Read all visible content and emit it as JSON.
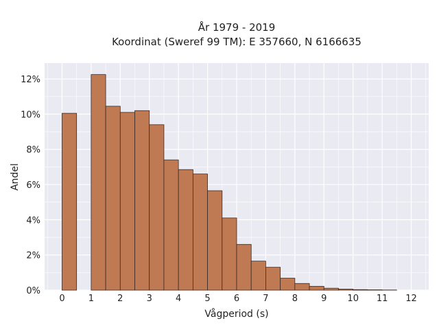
{
  "chart_data": {
    "type": "bar",
    "title": "År 1979 - 2019",
    "subtitle": "Koordinat (Sweref 99 TM): E 357660, N 6166635",
    "xlabel": "Vågperiod (s)",
    "ylabel": "Andel",
    "xlim": [
      -0.6,
      12.6
    ],
    "ylim": [
      0,
      12.9
    ],
    "x_ticks": [
      0,
      1,
      2,
      3,
      4,
      5,
      6,
      7,
      8,
      9,
      10,
      11,
      12
    ],
    "y_ticks": [
      0,
      2,
      4,
      6,
      8,
      10,
      12
    ],
    "y_tick_labels": [
      "0%",
      "2%",
      "4%",
      "6%",
      "8%",
      "10%",
      "12%"
    ],
    "bin_width": 0.5,
    "bins": [
      {
        "x": 0.0,
        "y": 10.05
      },
      {
        "x": 1.0,
        "y": 12.25
      },
      {
        "x": 1.5,
        "y": 10.45
      },
      {
        "x": 2.0,
        "y": 10.1
      },
      {
        "x": 2.5,
        "y": 10.2
      },
      {
        "x": 3.0,
        "y": 9.4
      },
      {
        "x": 3.5,
        "y": 7.4
      },
      {
        "x": 4.0,
        "y": 6.85
      },
      {
        "x": 4.5,
        "y": 6.6
      },
      {
        "x": 5.0,
        "y": 5.65
      },
      {
        "x": 5.5,
        "y": 4.1
      },
      {
        "x": 6.0,
        "y": 2.6
      },
      {
        "x": 6.5,
        "y": 1.65
      },
      {
        "x": 7.0,
        "y": 1.3
      },
      {
        "x": 7.5,
        "y": 0.68
      },
      {
        "x": 8.0,
        "y": 0.38
      },
      {
        "x": 8.5,
        "y": 0.22
      },
      {
        "x": 9.0,
        "y": 0.11
      },
      {
        "x": 9.5,
        "y": 0.06
      },
      {
        "x": 10.0,
        "y": 0.03
      },
      {
        "x": 10.5,
        "y": 0.02
      },
      {
        "x": 11.0,
        "y": 0.01
      }
    ],
    "grid": true,
    "colors": {
      "bar_fill": "#c07a53",
      "bar_edge": "#3a2a22",
      "plot_background": "#eaeaf2",
      "grid": "#ffffff"
    }
  }
}
